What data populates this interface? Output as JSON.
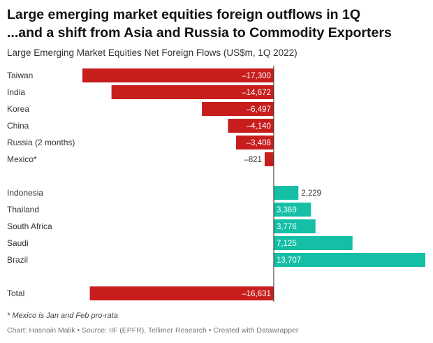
{
  "header": {
    "title_line1": "Large emerging market equities foreign outflows in 1Q",
    "title_line2": "...and a shift from Asia and Russia to Commodity Exporters",
    "subtitle": "Large Emerging Market Equities Net Foreign Flows (US$m, 1Q 2022)"
  },
  "chart_data": {
    "type": "bar",
    "orientation": "horizontal",
    "title": "Large Emerging Market Equities Net Foreign Flows (US$m, 1Q 2022)",
    "categories": [
      "Taiwan",
      "India",
      "Korea",
      "China",
      "Russia (2 months)",
      "Mexico*",
      "",
      "Indonesia",
      "Thailand",
      "South Africa",
      "Saudi",
      "Brazil",
      "",
      "Total"
    ],
    "values": [
      -17300,
      -14672,
      -6497,
      -4140,
      -3408,
      -821,
      null,
      2229,
      3369,
      3776,
      7125,
      13707,
      null,
      -16631
    ],
    "value_labels": [
      "–17,300",
      "–14,672",
      "–6,497",
      "–4,140",
      "–3,408",
      "–821",
      "",
      "2,229",
      "3,369",
      "3,776",
      "7,125",
      "13,707",
      "",
      "–16,631"
    ],
    "colors": {
      "negative": "#c71e1d",
      "positive": "#15bfa5"
    },
    "xlim": [
      -17300,
      13707
    ]
  },
  "footer": {
    "note": "* Mexico is Jan and Feb pro-rata",
    "source": "Chart: Hasnain Malik • Source: IIF (EPFR), Tellimer Research • Created with Datawrapper"
  }
}
